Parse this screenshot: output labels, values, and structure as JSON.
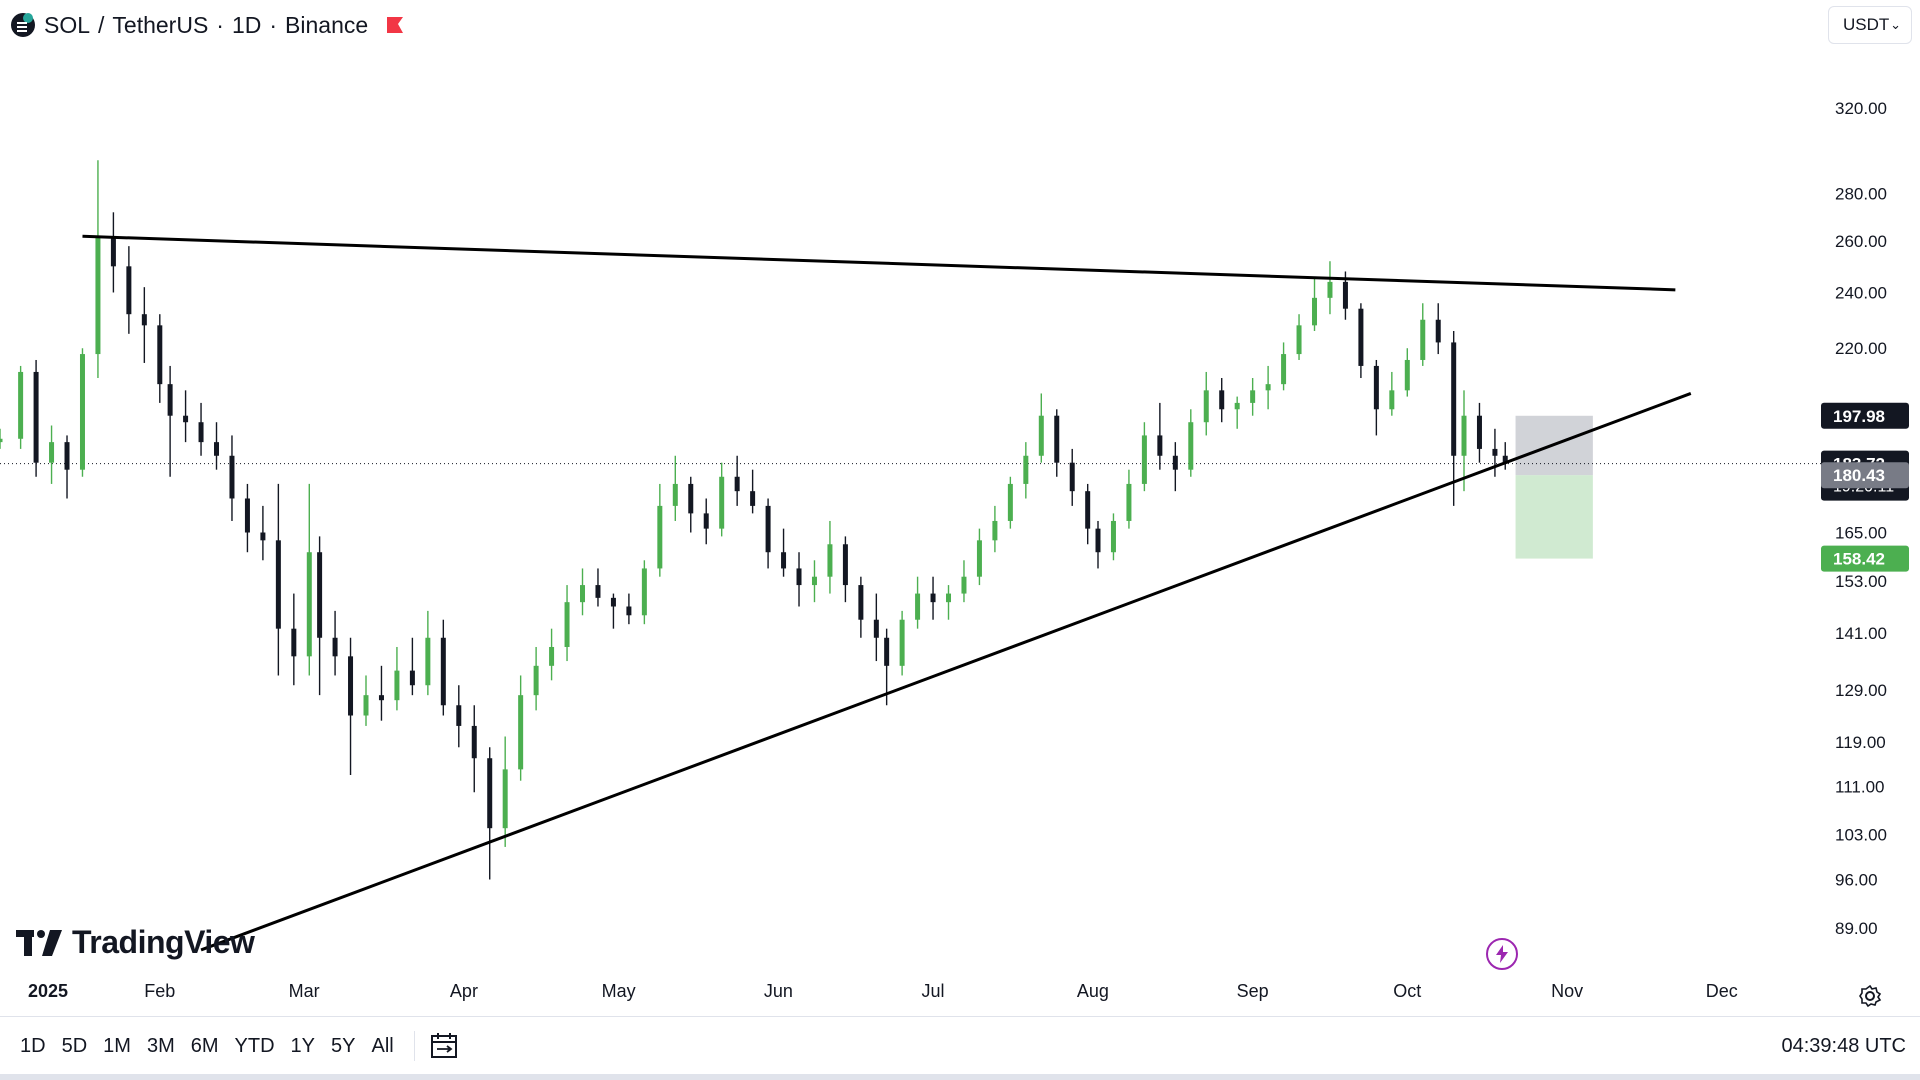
{
  "header": {
    "symbol": "SOL",
    "separator": "/",
    "quote_name": "TetherUS",
    "timeframe": "1D",
    "exchange": "Binance",
    "dot": "·"
  },
  "currency_select": {
    "value": "USDT"
  },
  "brand": {
    "name": "TradingView"
  },
  "bottom_bar": {
    "ranges": [
      "1D",
      "5D",
      "1M",
      "3M",
      "6M",
      "YTD",
      "1Y",
      "5Y",
      "All"
    ],
    "clock": "04:39:48 UTC"
  },
  "colors": {
    "candle_up": "#26a69a",
    "candle_up_light": "#4caf50",
    "candle_down": "#131722",
    "trendline": "#000000",
    "stop_zone": "#b2b5be",
    "target_zone": "#c8e6c9",
    "target_label": "#4caf50",
    "last_price_label": "#131722",
    "entry_label": "#787b86"
  },
  "chart_data": {
    "type": "candlestick",
    "title": "SOL / TetherUS · 1D · Binance",
    "y_scale": "log",
    "ylim": [
      84,
      345
    ],
    "xlim": [
      "2025-01-01",
      "2025-12-22"
    ],
    "x_ticks": [
      "2025",
      "Feb",
      "Mar",
      "Apr",
      "May",
      "Jun",
      "Jul",
      "Aug",
      "Sep",
      "Oct",
      "Nov",
      "Dec"
    ],
    "y_ticks": [
      "89.00",
      "96.00",
      "103.00",
      "111.00",
      "119.00",
      "129.00",
      "141.00",
      "153.00",
      "165.00",
      "220.00",
      "240.00",
      "260.00",
      "280.00",
      "320.00"
    ],
    "price_labels": {
      "resistance_level": "197.98",
      "last_price": "183.72",
      "countdown": "19:20:11",
      "entry": "180.43",
      "target": "158.42"
    },
    "candles_ohlc": [
      [
        "2025-01-01",
        190,
        194,
        188,
        191
      ],
      [
        "2025-01-05",
        191,
        214,
        188,
        212
      ],
      [
        "2025-01-08",
        212,
        216,
        180,
        184
      ],
      [
        "2025-01-11",
        184,
        195,
        178,
        190
      ],
      [
        "2025-01-14",
        190,
        192,
        174,
        182
      ],
      [
        "2025-01-17",
        182,
        220,
        180,
        218
      ],
      [
        "2025-01-20",
        218,
        295,
        210,
        262
      ],
      [
        "2025-01-23",
        262,
        272,
        240,
        250
      ],
      [
        "2025-01-26",
        250,
        258,
        225,
        232
      ],
      [
        "2025-01-29",
        232,
        242,
        215,
        228
      ],
      [
        "2025-02-01",
        228,
        232,
        202,
        208
      ],
      [
        "2025-02-03",
        208,
        214,
        180,
        198
      ],
      [
        "2025-02-06",
        198,
        206,
        190,
        196
      ],
      [
        "2025-02-09",
        196,
        202,
        186,
        190
      ],
      [
        "2025-02-12",
        190,
        196,
        182,
        186
      ],
      [
        "2025-02-15",
        186,
        192,
        168,
        174
      ],
      [
        "2025-02-18",
        174,
        178,
        160,
        165
      ],
      [
        "2025-02-21",
        165,
        172,
        158,
        163
      ],
      [
        "2025-02-24",
        163,
        178,
        132,
        142
      ],
      [
        "2025-02-27",
        142,
        150,
        130,
        136
      ],
      [
        "2025-03-02",
        136,
        178,
        132,
        160
      ],
      [
        "2025-03-04",
        160,
        164,
        128,
        140
      ],
      [
        "2025-03-07",
        140,
        146,
        132,
        136
      ],
      [
        "2025-03-10",
        136,
        140,
        113,
        124
      ],
      [
        "2025-03-13",
        124,
        132,
        122,
        128
      ],
      [
        "2025-03-16",
        128,
        134,
        123,
        127
      ],
      [
        "2025-03-19",
        127,
        138,
        125,
        133
      ],
      [
        "2025-03-22",
        133,
        140,
        128,
        130
      ],
      [
        "2025-03-25",
        130,
        146,
        128,
        140
      ],
      [
        "2025-03-28",
        140,
        144,
        124,
        126
      ],
      [
        "2025-03-31",
        126,
        130,
        118,
        122
      ],
      [
        "2025-04-03",
        122,
        126,
        110,
        116
      ],
      [
        "2025-04-06",
        116,
        118,
        96,
        104
      ],
      [
        "2025-04-09",
        104,
        120,
        101,
        114
      ],
      [
        "2025-04-12",
        114,
        132,
        112,
        128
      ],
      [
        "2025-04-15",
        128,
        138,
        125,
        134
      ],
      [
        "2025-04-18",
        134,
        142,
        131,
        138
      ],
      [
        "2025-04-21",
        138,
        152,
        135,
        148
      ],
      [
        "2025-04-24",
        148,
        156,
        145,
        152
      ],
      [
        "2025-04-27",
        152,
        156,
        147,
        149
      ],
      [
        "2025-04-30",
        149,
        150,
        142,
        147
      ],
      [
        "2025-05-03",
        147,
        150,
        143,
        145
      ],
      [
        "2025-05-06",
        145,
        158,
        143,
        156
      ],
      [
        "2025-05-09",
        156,
        178,
        154,
        172
      ],
      [
        "2025-05-12",
        172,
        186,
        168,
        178
      ],
      [
        "2025-05-15",
        178,
        180,
        165,
        170
      ],
      [
        "2025-05-18",
        170,
        174,
        162,
        166
      ],
      [
        "2025-05-21",
        166,
        184,
        164,
        180
      ],
      [
        "2025-05-24",
        180,
        186,
        172,
        176
      ],
      [
        "2025-05-27",
        176,
        182,
        170,
        172
      ],
      [
        "2025-05-30",
        172,
        174,
        156,
        160
      ],
      [
        "2025-06-02",
        160,
        166,
        154,
        156
      ],
      [
        "2025-06-05",
        156,
        160,
        147,
        152
      ],
      [
        "2025-06-08",
        152,
        158,
        148,
        154
      ],
      [
        "2025-06-11",
        154,
        168,
        150,
        162
      ],
      [
        "2025-06-14",
        162,
        164,
        148,
        152
      ],
      [
        "2025-06-17",
        152,
        154,
        140,
        144
      ],
      [
        "2025-06-20",
        144,
        150,
        135,
        140
      ],
      [
        "2025-06-22",
        140,
        142,
        126,
        134
      ],
      [
        "2025-06-25",
        134,
        146,
        132,
        144
      ],
      [
        "2025-06-28",
        144,
        154,
        142,
        150
      ],
      [
        "2025-07-01",
        150,
        154,
        144,
        148
      ],
      [
        "2025-07-04",
        148,
        152,
        144,
        150
      ],
      [
        "2025-07-07",
        150,
        158,
        148,
        154
      ],
      [
        "2025-07-10",
        154,
        166,
        152,
        163
      ],
      [
        "2025-07-13",
        163,
        172,
        160,
        168
      ],
      [
        "2025-07-16",
        168,
        180,
        166,
        178
      ],
      [
        "2025-07-19",
        178,
        190,
        174,
        186
      ],
      [
        "2025-07-22",
        186,
        205,
        184,
        198
      ],
      [
        "2025-07-25",
        198,
        200,
        180,
        184
      ],
      [
        "2025-07-28",
        184,
        188,
        172,
        176
      ],
      [
        "2025-07-31",
        176,
        178,
        162,
        166
      ],
      [
        "2025-08-02",
        166,
        168,
        156,
        160
      ],
      [
        "2025-08-05",
        160,
        170,
        158,
        168
      ],
      [
        "2025-08-08",
        168,
        182,
        166,
        178
      ],
      [
        "2025-08-11",
        178,
        196,
        176,
        192
      ],
      [
        "2025-08-14",
        192,
        202,
        182,
        186
      ],
      [
        "2025-08-17",
        186,
        190,
        176,
        182
      ],
      [
        "2025-08-20",
        182,
        200,
        180,
        196
      ],
      [
        "2025-08-23",
        196,
        212,
        192,
        206
      ],
      [
        "2025-08-26",
        206,
        210,
        196,
        200
      ],
      [
        "2025-08-29",
        200,
        204,
        194,
        202
      ],
      [
        "2025-09-01",
        202,
        210,
        198,
        206
      ],
      [
        "2025-09-04",
        206,
        214,
        200,
        208
      ],
      [
        "2025-09-07",
        208,
        222,
        206,
        218
      ],
      [
        "2025-09-10",
        218,
        232,
        216,
        228
      ],
      [
        "2025-09-13",
        228,
        246,
        226,
        238
      ],
      [
        "2025-09-16",
        238,
        252,
        232,
        244
      ],
      [
        "2025-09-19",
        244,
        248,
        230,
        234
      ],
      [
        "2025-09-22",
        234,
        236,
        210,
        214
      ],
      [
        "2025-09-25",
        214,
        216,
        192,
        200
      ],
      [
        "2025-09-28",
        200,
        212,
        198,
        206
      ],
      [
        "2025-10-01",
        206,
        220,
        204,
        216
      ],
      [
        "2025-10-04",
        216,
        236,
        214,
        230
      ],
      [
        "2025-10-07",
        230,
        236,
        218,
        222
      ],
      [
        "2025-10-10",
        222,
        226,
        172,
        186
      ],
      [
        "2025-10-12",
        186,
        206,
        176,
        198
      ],
      [
        "2025-10-15",
        198,
        202,
        184,
        188
      ],
      [
        "2025-10-18",
        188,
        194,
        180,
        186
      ],
      [
        "2025-10-20",
        186,
        190,
        182,
        183.72
      ]
    ],
    "trendlines": [
      {
        "name": "resistance",
        "from": [
          "2025-01-17",
          262
        ],
        "to": [
          "2025-11-22",
          241
        ]
      },
      {
        "name": "support",
        "from": [
          "2025-02-09",
          86
        ],
        "to": [
          "2025-11-25",
          205
        ]
      }
    ],
    "position_zones": {
      "stop_top": 197.98,
      "entry": 180.43,
      "target": 158.42,
      "from": "2025-10-22",
      "to": "2025-11-06"
    }
  }
}
